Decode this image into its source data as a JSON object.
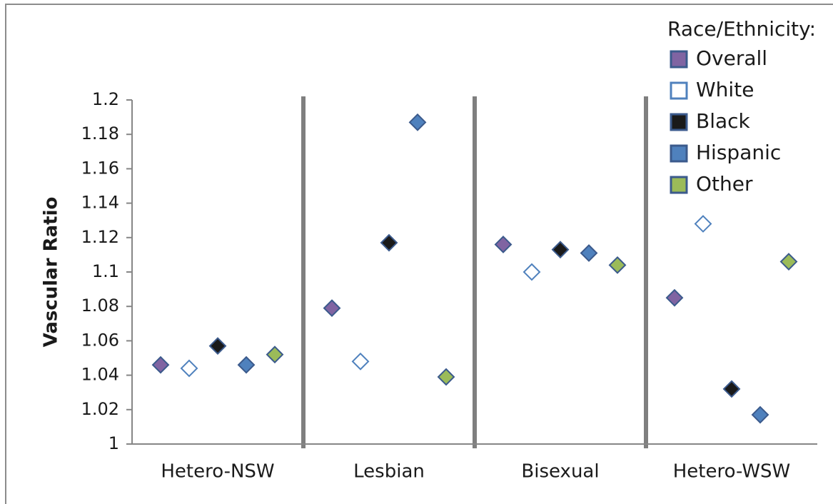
{
  "chart_data": {
    "type": "scatter",
    "y_label": "Vascular Ratio",
    "legend_title": "Race/Ethnicity:",
    "legend": "top-right",
    "categories": [
      "Hetero-NSW",
      "Lesbian",
      "Bisexual",
      "Hetero-WSW"
    ],
    "ylim": [
      1,
      1.2
    ],
    "yticks": [
      1,
      1.02,
      1.04,
      1.06,
      1.08,
      1.1,
      1.12,
      1.14,
      1.16,
      1.18,
      1.2
    ],
    "series": [
      {
        "name": "Overall",
        "color": "#8064a2",
        "values": [
          1.046,
          1.079,
          1.116,
          1.085
        ]
      },
      {
        "name": "White",
        "color": "#ffffff",
        "values": [
          1.044,
          1.048,
          1.1,
          1.128
        ]
      },
      {
        "name": "Black",
        "color": "#1a1a1a",
        "values": [
          1.057,
          1.117,
          1.113,
          1.032
        ]
      },
      {
        "name": "Hispanic",
        "color": "#4f81bd",
        "values": [
          1.046,
          1.187,
          1.111,
          1.017
        ]
      },
      {
        "name": "Other",
        "color": "#9bbb59",
        "values": [
          1.052,
          1.039,
          1.104,
          1.106
        ]
      }
    ]
  }
}
